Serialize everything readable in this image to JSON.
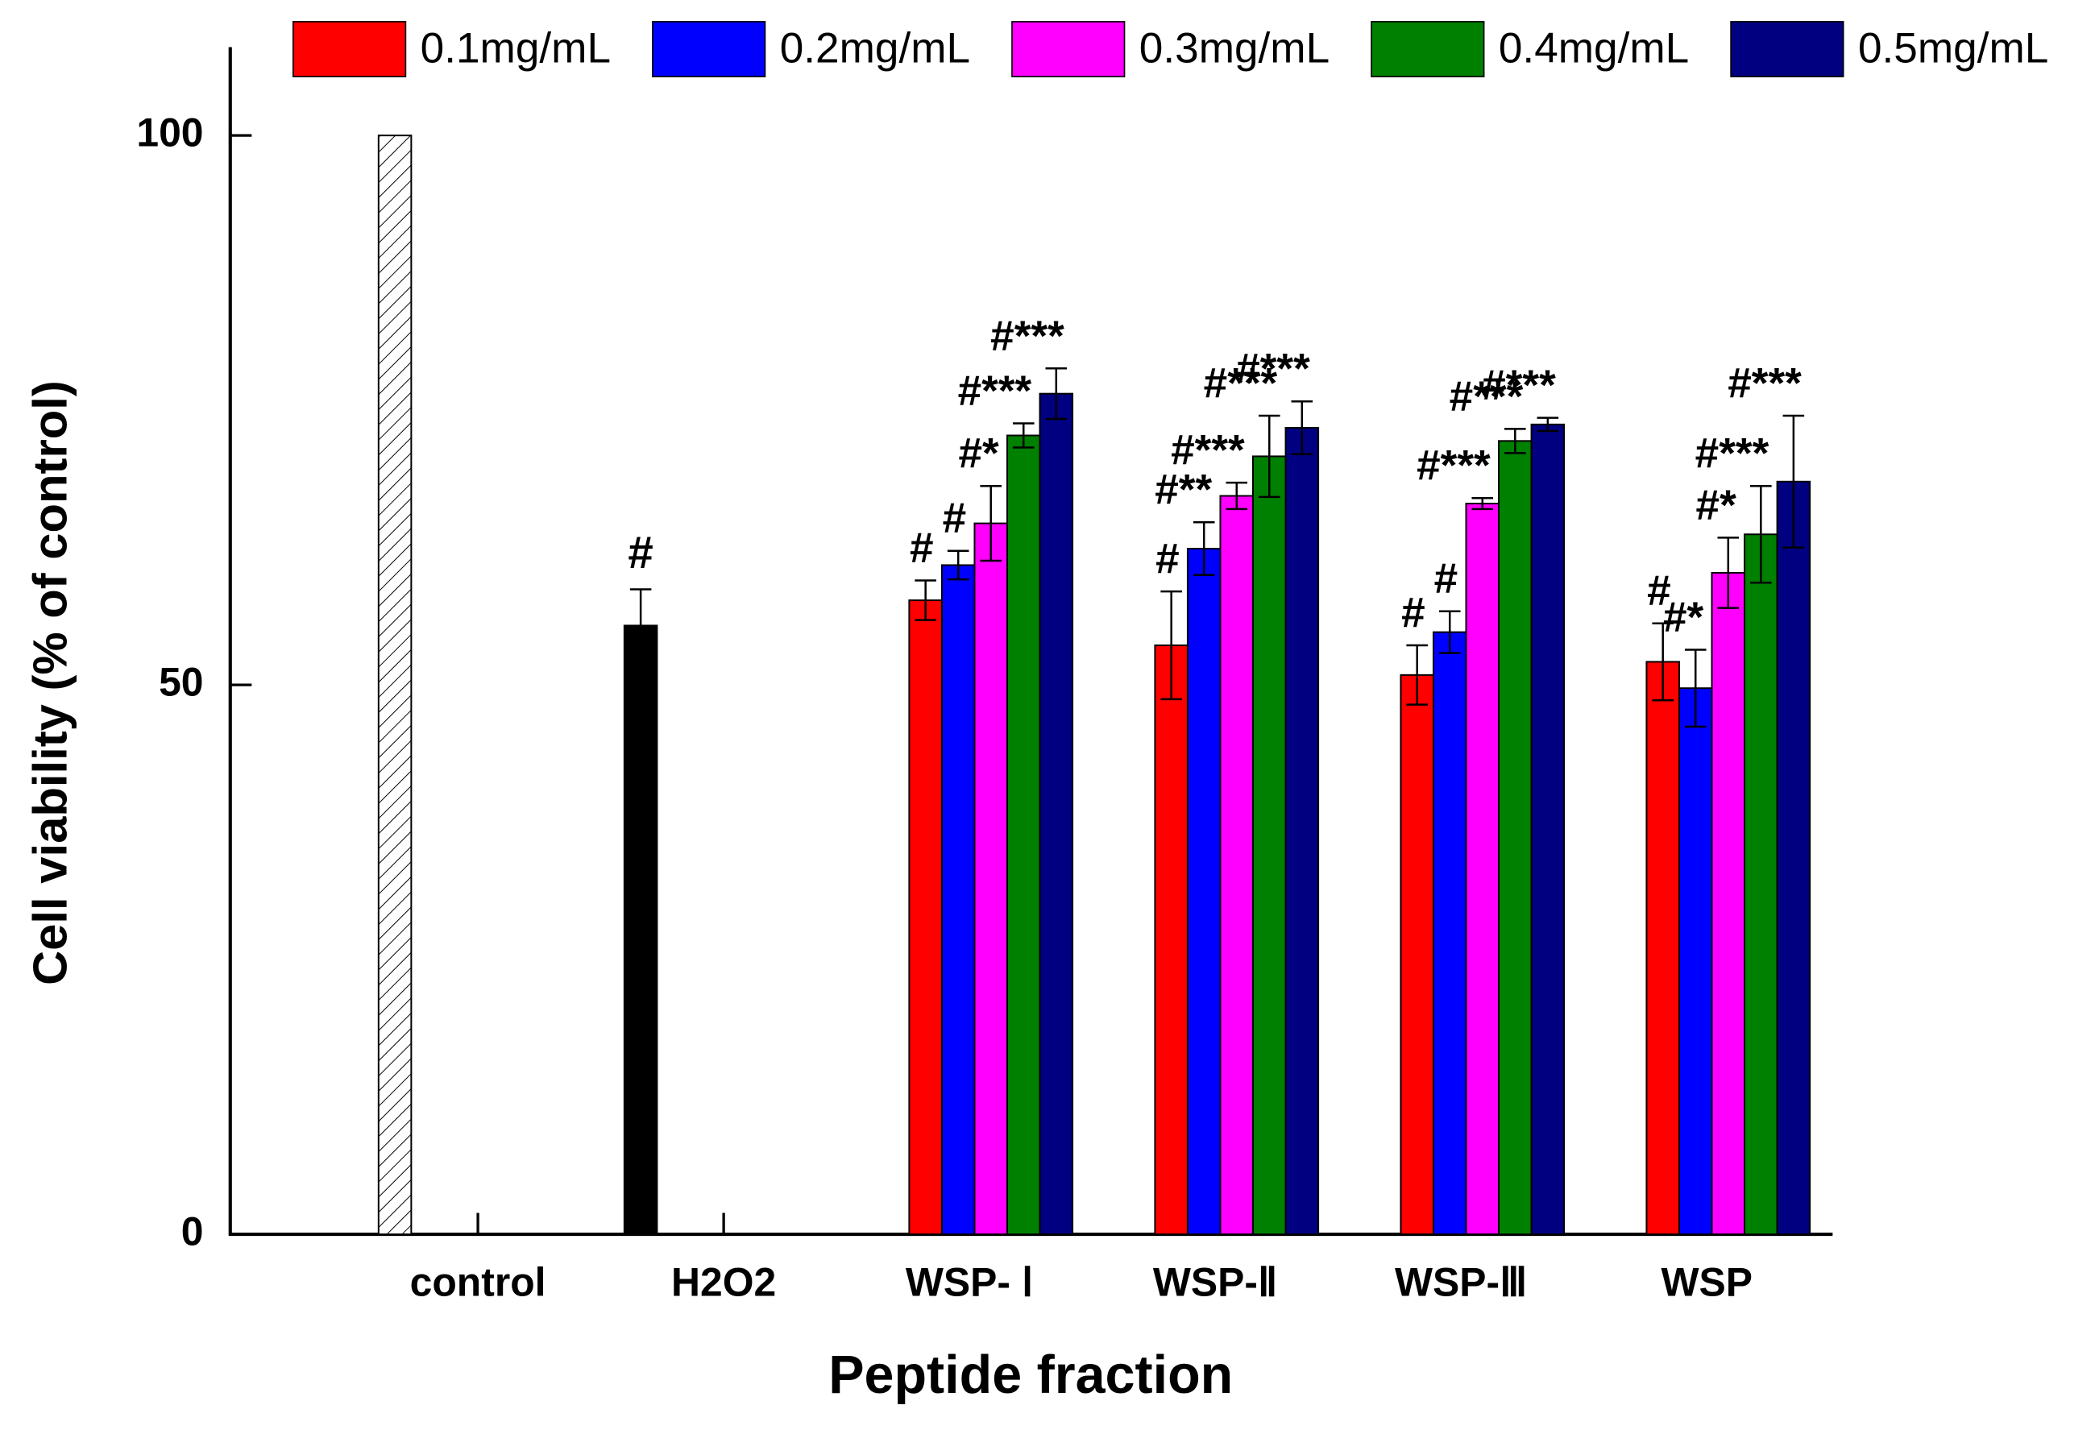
{
  "chart_data": {
    "type": "bar",
    "xlabel": "Peptide fraction",
    "ylabel": "Cell viability (% of control)",
    "categories": [
      "control",
      "H2O2",
      "WSP- Ⅰ",
      "WSP-Ⅱ",
      "WSP-Ⅲ",
      "WSP"
    ],
    "ylim": [
      0,
      108
    ],
    "yticks": [
      0,
      50,
      100
    ],
    "reference_values": [
      100,
      55.4,
      null,
      null,
      null,
      null
    ],
    "reference_errors": [
      null,
      3.3,
      null,
      null,
      null,
      null
    ],
    "reference_labels": [
      null,
      "#",
      null,
      null,
      null,
      null
    ],
    "reference_colors": [
      "hatch",
      "#000000",
      null,
      null,
      null,
      null
    ],
    "series": [
      {
        "name": "0.1mg/mL",
        "color": "#ff0000",
        "values": [
          null,
          null,
          57.7,
          53.6,
          50.9,
          52.1
        ],
        "errors": [
          null,
          null,
          1.8,
          4.9,
          2.7,
          3.5
        ],
        "labels": [
          null,
          null,
          "#",
          "#",
          "#",
          "#"
        ]
      },
      {
        "name": "0.2mg/mL",
        "color": "#0000ff",
        "values": [
          null,
          null,
          60.9,
          62.4,
          54.8,
          49.7
        ],
        "errors": [
          null,
          null,
          1.3,
          2.4,
          1.9,
          3.5
        ],
        "labels": [
          null,
          null,
          "#",
          "#**",
          "#",
          "#*"
        ]
      },
      {
        "name": "0.3mg/mL",
        "color": "#ff00ff",
        "values": [
          null,
          null,
          64.7,
          67.2,
          66.5,
          60.2
        ],
        "errors": [
          null,
          null,
          3.4,
          1.2,
          0.5,
          3.2
        ],
        "labels": [
          null,
          null,
          "#*",
          "#***",
          "#***",
          "#*"
        ]
      },
      {
        "name": "0.4mg/mL",
        "color": "#008000",
        "values": [
          null,
          null,
          72.7,
          70.8,
          72.2,
          63.7
        ],
        "errors": [
          null,
          null,
          1.1,
          3.7,
          1.1,
          4.4
        ],
        "labels": [
          null,
          null,
          "#***",
          "#***",
          "#***",
          "#***"
        ]
      },
      {
        "name": "0.5mg/mL",
        "color": "#000080",
        "values": [
          null,
          null,
          76.5,
          73.4,
          73.7,
          68.5
        ],
        "errors": [
          null,
          null,
          2.3,
          2.4,
          0.6,
          6.0
        ],
        "labels": [
          null,
          null,
          "#***",
          "#***",
          "#***",
          "#***"
        ]
      }
    ]
  }
}
